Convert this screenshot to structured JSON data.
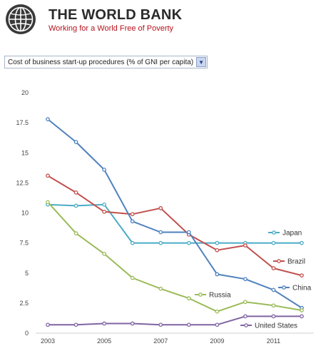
{
  "header": {
    "title": "THE WORLD BANK",
    "subtitle": "Working for a World Free of Poverty"
  },
  "indicator_select": {
    "value": "Cost of business start-up procedures (% of GNI per capita)",
    "arrow_icon": "chevron-down-icon"
  },
  "colors": {
    "brand_red": "#b5121b",
    "Japan": "#4bacc6",
    "Brazil": "#c0504d",
    "China": "#4f81bd",
    "Russia": "#9bbb59",
    "United States": "#8064a2"
  },
  "chart_data": {
    "type": "line",
    "ylim": [
      0,
      20
    ],
    "yticks": [
      0,
      2.5,
      5,
      7.5,
      10,
      12.5,
      15,
      17.5,
      20
    ],
    "ytick_labels": [
      "0",
      "2.5",
      "5",
      "7.5",
      "10",
      "12.5",
      "15",
      "17.5",
      "20"
    ],
    "xlim": [
      2003,
      2012
    ],
    "xticks": [
      2003,
      2005,
      2007,
      2009,
      2011
    ],
    "xtick_labels": [
      "2003",
      "2005",
      "2007",
      "2009",
      "2011"
    ],
    "grid": false,
    "x": [
      2003,
      2004,
      2005,
      2006,
      2007,
      2008,
      2009,
      2010,
      2011,
      2012
    ],
    "series": [
      {
        "name": "Japan",
        "color": "#4bacc6",
        "values": [
          10.7,
          10.6,
          10.7,
          7.5,
          7.5,
          7.5,
          7.5,
          7.5,
          7.5,
          7.5
        ]
      },
      {
        "name": "Brazil",
        "color": "#c0504d",
        "values": [
          13.1,
          11.7,
          10.1,
          9.9,
          10.4,
          8.2,
          6.9,
          7.3,
          5.4,
          4.8
        ]
      },
      {
        "name": "China",
        "color": "#4f81bd",
        "values": [
          17.8,
          15.9,
          13.6,
          9.3,
          8.4,
          8.4,
          4.9,
          4.5,
          3.6,
          2.1
        ]
      },
      {
        "name": "Russia",
        "color": "#9bbb59",
        "values": [
          10.9,
          8.3,
          6.6,
          4.6,
          3.7,
          2.9,
          1.8,
          2.6,
          2.3,
          1.9
        ]
      },
      {
        "name": "United States",
        "color": "#8064a2",
        "values": [
          0.7,
          0.7,
          0.8,
          0.8,
          0.7,
          0.7,
          0.7,
          1.4,
          1.4,
          1.4
        ]
      }
    ]
  }
}
